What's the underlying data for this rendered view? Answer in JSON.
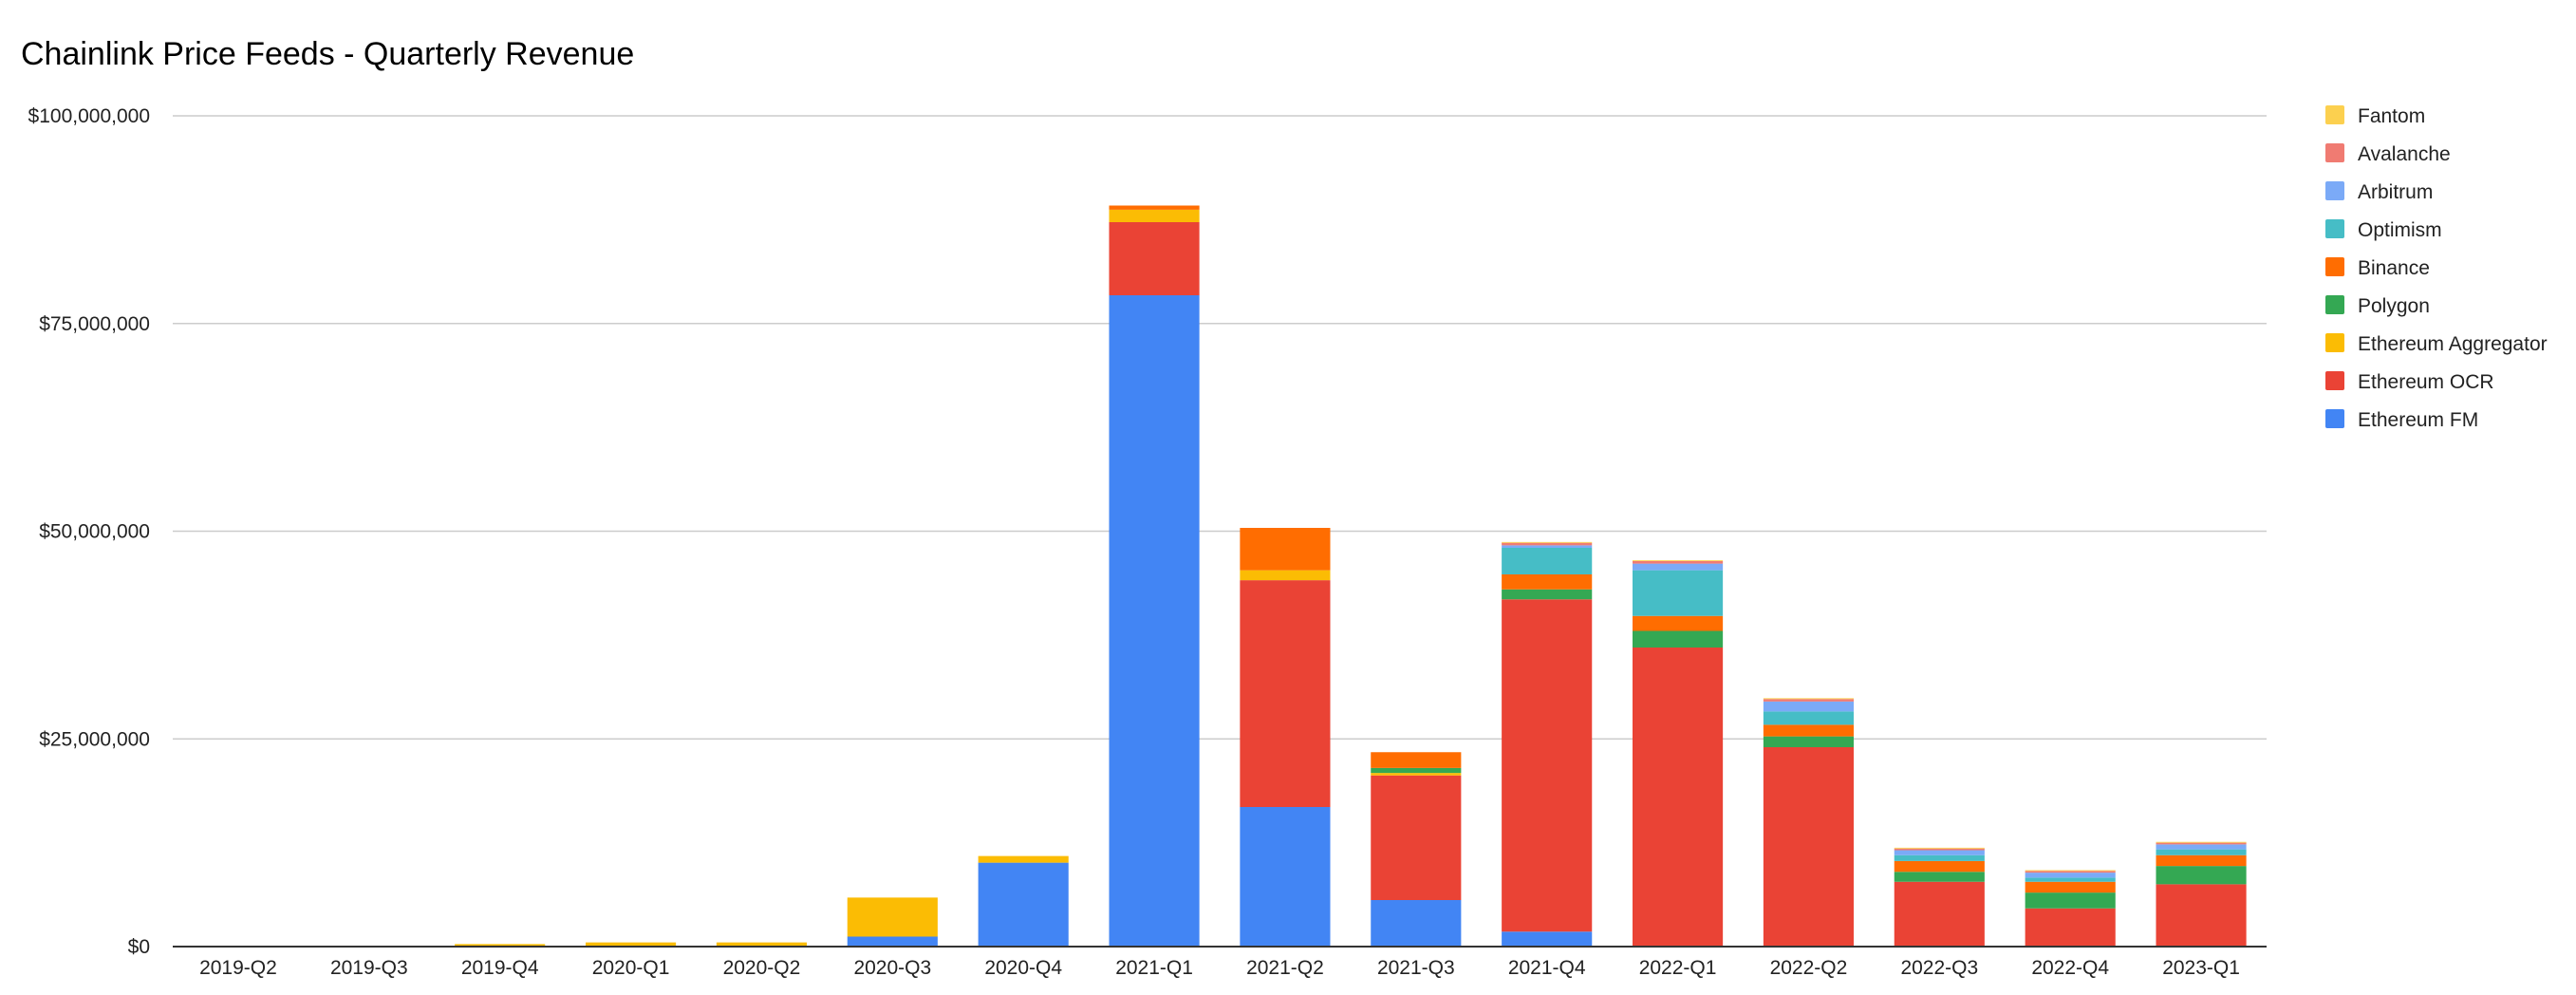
{
  "chart_data": {
    "type": "bar",
    "stacked": true,
    "title": "Chainlink Price Feeds - Quarterly Revenue",
    "xlabel": "",
    "ylabel": "",
    "ylim": [
      0,
      100000000
    ],
    "y_ticks": [
      0,
      25000000,
      50000000,
      75000000,
      100000000
    ],
    "y_tick_labels": [
      "$0",
      "$25,000,000",
      "$50,000,000",
      "$75,000,000",
      "$100,000,000"
    ],
    "grid": true,
    "legend_position": "right",
    "categories": [
      "2019-Q2",
      "2019-Q3",
      "2019-Q4",
      "2020-Q1",
      "2020-Q2",
      "2020-Q3",
      "2020-Q4",
      "2021-Q1",
      "2021-Q2",
      "2021-Q3",
      "2021-Q4",
      "2022-Q1",
      "2022-Q2",
      "2022-Q3",
      "2022-Q4",
      "2023-Q1"
    ],
    "series": [
      {
        "name": "Ethereum FM",
        "color": "#4285F4",
        "values": [
          0,
          0,
          0,
          0,
          0,
          1200000,
          10100000,
          78400000,
          16800000,
          5600000,
          1800000,
          0,
          0,
          0,
          0,
          0
        ]
      },
      {
        "name": "Ethereum OCR",
        "color": "#EA4335",
        "values": [
          0,
          0,
          0,
          0,
          0,
          0,
          0,
          8800000,
          27300000,
          15000000,
          40000000,
          36000000,
          24000000,
          7800000,
          4600000,
          7500000
        ]
      },
      {
        "name": "Ethereum Aggregator",
        "color": "#FBBC04",
        "values": [
          50000,
          80000,
          300000,
          500000,
          500000,
          4700000,
          800000,
          1500000,
          1200000,
          300000,
          0,
          0,
          0,
          0,
          0,
          0
        ]
      },
      {
        "name": "Polygon",
        "color": "#34A853",
        "values": [
          0,
          0,
          0,
          0,
          0,
          0,
          0,
          0,
          0,
          600000,
          1200000,
          2000000,
          1300000,
          1200000,
          1900000,
          2200000
        ]
      },
      {
        "name": "Binance",
        "color": "#FF6D01",
        "values": [
          0,
          0,
          0,
          0,
          0,
          0,
          0,
          500000,
          5100000,
          1900000,
          1800000,
          1800000,
          1400000,
          1300000,
          1300000,
          1300000
        ]
      },
      {
        "name": "Optimism",
        "color": "#46BDC6",
        "values": [
          0,
          0,
          0,
          0,
          0,
          0,
          0,
          0,
          0,
          0,
          3200000,
          5500000,
          1600000,
          700000,
          500000,
          700000
        ]
      },
      {
        "name": "Arbitrum",
        "color": "#7BAAF7",
        "values": [
          0,
          0,
          0,
          0,
          0,
          0,
          0,
          0,
          0,
          0,
          300000,
          800000,
          1200000,
          600000,
          600000,
          600000
        ]
      },
      {
        "name": "Avalanche",
        "color": "#F07B72",
        "values": [
          0,
          0,
          0,
          0,
          0,
          0,
          0,
          0,
          0,
          0,
          300000,
          300000,
          300000,
          200000,
          200000,
          200000
        ]
      },
      {
        "name": "Fantom",
        "color": "#FCD04F",
        "values": [
          0,
          0,
          0,
          0,
          0,
          0,
          0,
          0,
          0,
          0,
          100000,
          100000,
          100000,
          100000,
          100000,
          100000
        ]
      }
    ],
    "legend_order": [
      "Fantom",
      "Avalanche",
      "Arbitrum",
      "Optimism",
      "Binance",
      "Polygon",
      "Ethereum Aggregator",
      "Ethereum OCR",
      "Ethereum FM"
    ]
  }
}
